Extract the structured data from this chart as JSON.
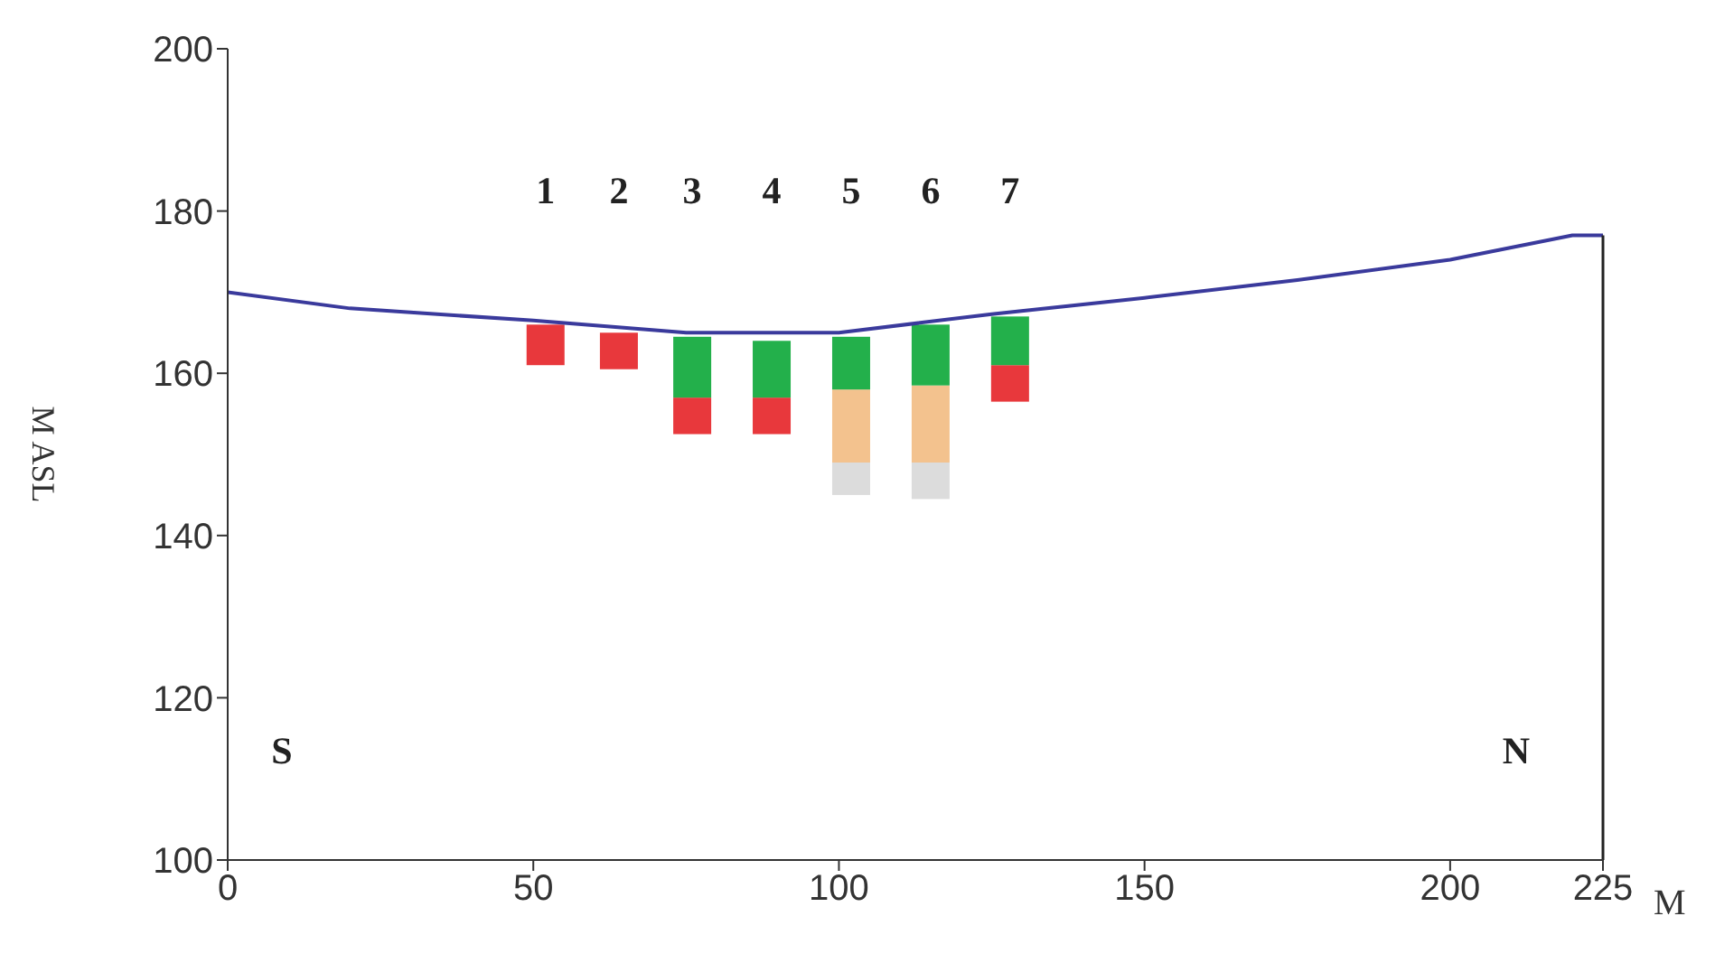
{
  "chart_data": {
    "type": "bar",
    "ylabel": "M ASL",
    "xlabel": "M",
    "x": [
      52,
      64,
      76,
      89,
      102,
      115,
      128
    ],
    "series": [
      {
        "color": "#dcdcdc",
        "base": [
          null,
          null,
          null,
          null,
          145,
          144.5,
          null
        ],
        "values": [
          null,
          null,
          null,
          null,
          4,
          4.5,
          null
        ]
      },
      {
        "color": "#f3c28e",
        "base": [
          null,
          null,
          null,
          null,
          149,
          149,
          null
        ],
        "values": [
          null,
          null,
          null,
          null,
          9,
          9.5,
          null
        ]
      },
      {
        "color": "#e8383c",
        "base": [
          161,
          160.5,
          152.5,
          152.5,
          null,
          null,
          156.5
        ],
        "values": [
          5,
          4.5,
          4.5,
          4.5,
          null,
          null,
          4.5
        ]
      },
      {
        "color": "#23b04b",
        "base": [
          null,
          null,
          157,
          157,
          158,
          158.5,
          161
        ],
        "values": [
          null,
          null,
          7.5,
          7,
          6.5,
          7.5,
          6
        ]
      },
      {
        "type": "line",
        "color": "#3a3a9c",
        "x": [
          0,
          20,
          50,
          75,
          100,
          125,
          150,
          175,
          200,
          210,
          220,
          225
        ],
        "values": [
          170,
          168,
          166.5,
          165,
          165,
          167.3,
          169.3,
          171.5,
          174,
          175.5,
          177,
          177
        ]
      }
    ],
    "xlim": [
      0,
      225
    ],
    "xticks": [
      0,
      50,
      100,
      150,
      200,
      225
    ],
    "ylim": [
      100,
      200
    ],
    "yticks": [
      100,
      120,
      140,
      160,
      180,
      200
    ],
    "ref_lines": [
      {
        "axis": "x",
        "value": 225,
        "color": "#222222"
      }
    ],
    "annotations": [
      "1",
      "2",
      "3",
      "4",
      "5",
      "6",
      "7",
      "S",
      "N"
    ],
    "grid": false,
    "legend": false
  }
}
